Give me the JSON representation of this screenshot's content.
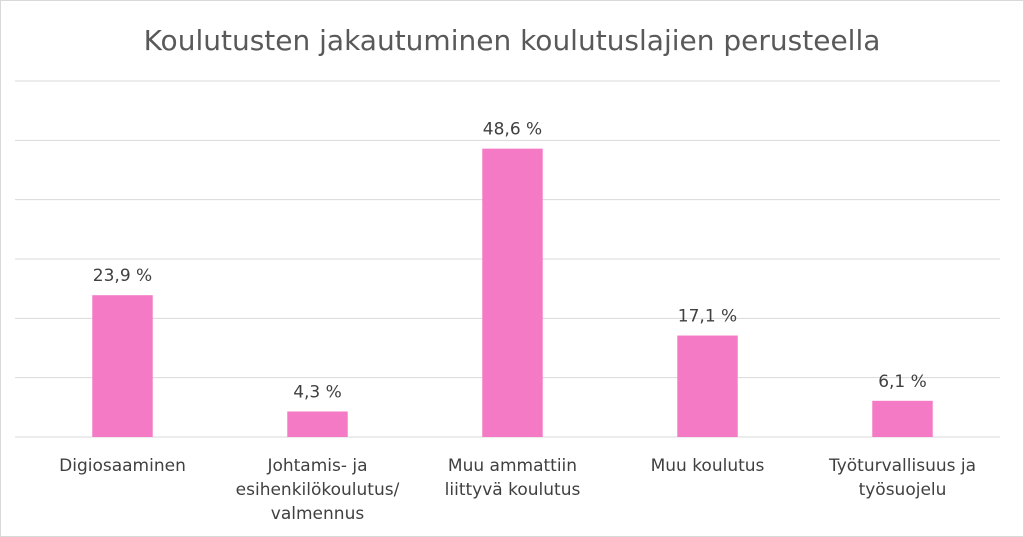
{
  "chart_data": {
    "type": "bar",
    "title": "Koulutusten jakautuminen koulutuslajien perusteella",
    "categories": [
      "Digiosaaminen",
      "Johtamis- ja\nesihenkilökoulutus/\nvalmennus",
      "Muu ammattiin\nliittyvä koulutus",
      "Muu koulutus",
      "Työturvallisuus ja\ntyösuojelu"
    ],
    "values": [
      23.9,
      4.3,
      48.6,
      17.1,
      6.1
    ],
    "value_labels": [
      "23,9 %",
      "4,3 %",
      "48,6 %",
      "17,1 %",
      "6,1 %"
    ],
    "color": "#f47ac6",
    "ylim": [
      0,
      60
    ],
    "yticks": [
      0,
      10,
      20,
      30,
      40,
      50,
      60
    ],
    "grid": true
  }
}
